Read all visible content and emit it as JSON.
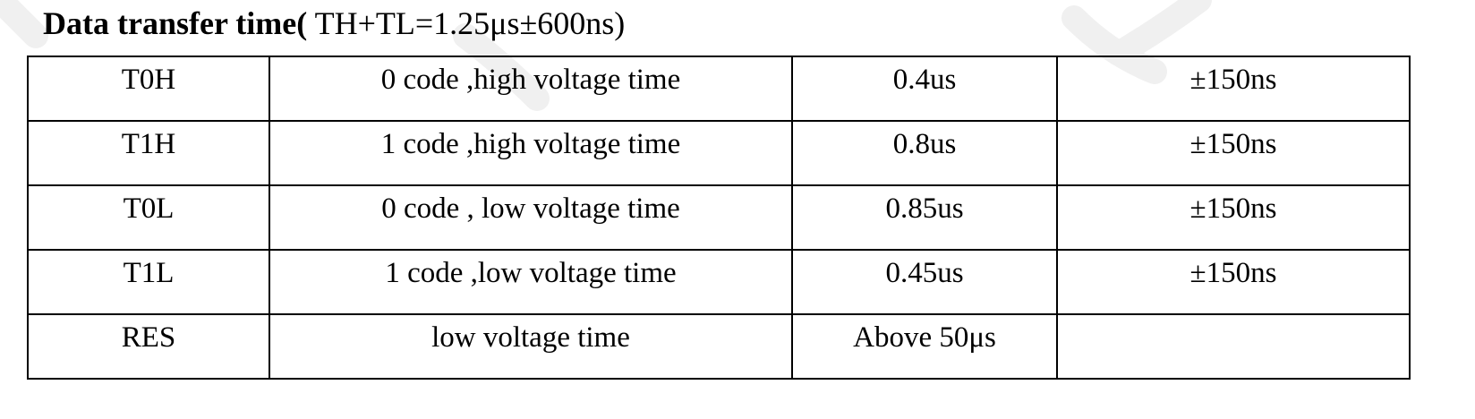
{
  "heading": {
    "bold_part": "Data transfer time(",
    "normal_part": " TH+TL=1.25μs±600ns)"
  },
  "table": {
    "rows": [
      {
        "name": "T0H",
        "description": "0 code ,high voltage time",
        "value": "0.4us",
        "tolerance": "±150ns"
      },
      {
        "name": "T1H",
        "description": "1 code ,high voltage time",
        "value": "0.8us",
        "tolerance": "±150ns"
      },
      {
        "name": "T0L",
        "description": "0 code , low voltage time",
        "value": "0.85us",
        "tolerance": "±150ns"
      },
      {
        "name": "T1L",
        "description": "1 code ,low voltage time",
        "value": "0.45us",
        "tolerance": "±150ns"
      },
      {
        "name": "RES",
        "description": "low voltage time",
        "value": "Above 50μs",
        "tolerance": ""
      }
    ]
  },
  "colors": {
    "text": "#000000",
    "border": "#000000",
    "watermark": "#f2f2f2"
  }
}
